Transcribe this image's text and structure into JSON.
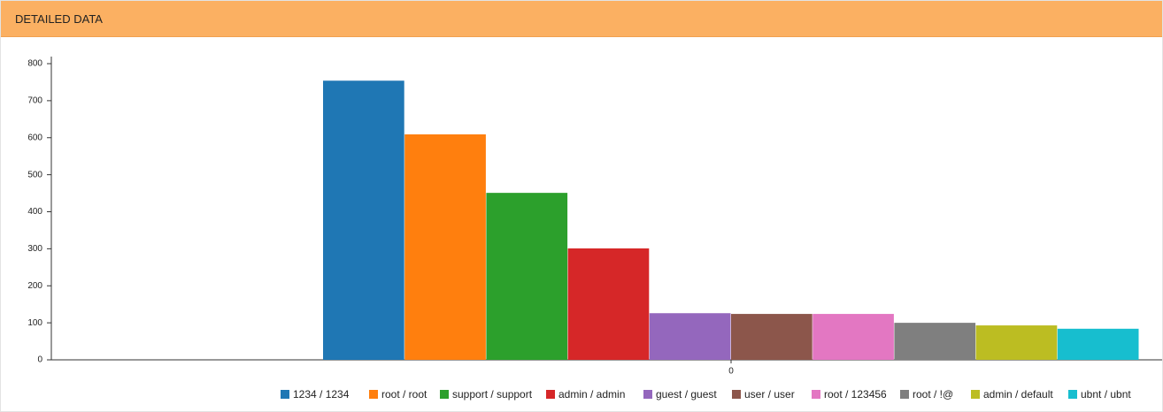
{
  "panel_title": "DETAILED DATA",
  "chart_data": {
    "type": "bar",
    "categories": [
      "0"
    ],
    "series": [
      {
        "name": "1234 / 1234",
        "color": "#1f77b4",
        "values": [
          754
        ]
      },
      {
        "name": "root / root",
        "color": "#ff7f0e",
        "values": [
          609
        ]
      },
      {
        "name": "support / support",
        "color": "#2ca02c",
        "values": [
          451
        ]
      },
      {
        "name": "admin / admin",
        "color": "#d62728",
        "values": [
          301
        ]
      },
      {
        "name": "guest / guest",
        "color": "#9467bd",
        "values": [
          126
        ]
      },
      {
        "name": "user / user",
        "color": "#8c564b",
        "values": [
          124
        ]
      },
      {
        "name": "root / 123456",
        "color": "#e377c2",
        "values": [
          124
        ]
      },
      {
        "name": "root / !@",
        "color": "#7f7f7f",
        "values": [
          100
        ]
      },
      {
        "name": "admin / default",
        "color": "#bcbd22",
        "values": [
          93
        ]
      },
      {
        "name": "ubnt / ubnt",
        "color": "#17becf",
        "values": [
          84
        ]
      }
    ],
    "ylim": [
      0,
      800
    ],
    "yticks": [
      0,
      100,
      200,
      300,
      400,
      500,
      600,
      700,
      800
    ],
    "legend": "bottom"
  }
}
